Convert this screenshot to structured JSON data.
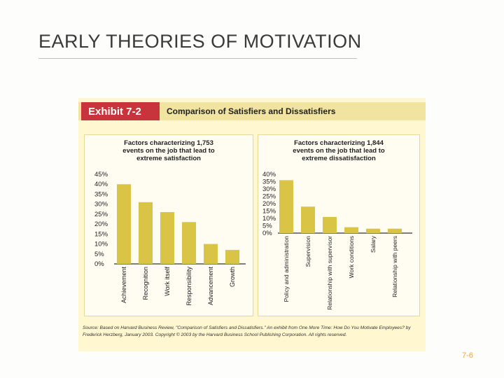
{
  "slide": {
    "title": "EARLY THEORIES OF MOTIVATION",
    "page_number": "7-6"
  },
  "exhibit": {
    "tag": "Exhibit 7-2",
    "heading": "Comparison of Satisfiers and Dissatisfiers",
    "source": "Source: Based on Harvard Business Review, \"Comparison of Satisfiers and Dissatisfiers.\" An exhibit from One More Time: How Do You Motivate Employees? by Frederick Herzberg, January 2003. Copyright © 2003 by the Harvard Business School Publishing Corporation. All rights reserved.",
    "colors": {
      "tag_bg": "#c8343b",
      "bar": "#d9c445",
      "background": "#fff7cf"
    }
  },
  "chart_data": [
    {
      "type": "bar",
      "title": "Factors characterizing 1,753 events on the job that lead to extreme satisfaction",
      "categories": [
        "Achievement",
        "Recognition",
        "Work itself",
        "Responsibility",
        "Advancement",
        "Growth"
      ],
      "values": [
        40,
        31,
        26,
        21,
        10,
        7
      ],
      "ylim": [
        0,
        45
      ],
      "yticks": [
        "0%",
        "5%",
        "10%",
        "15%",
        "20%",
        "25%",
        "30%",
        "35%",
        "40%",
        "45%"
      ]
    },
    {
      "type": "bar",
      "title": "Factors characterizing 1,844 events on the job that lead to extreme dissatisfaction",
      "categories": [
        "Policy and administration",
        "Supervision",
        "Relationship with supervisor",
        "Work conditions",
        "Salary",
        "Relationship with peers"
      ],
      "values": [
        36,
        18,
        11,
        4,
        3,
        3
      ],
      "ylim": [
        0,
        40
      ],
      "yticks": [
        "0%",
        "5%",
        "10%",
        "15%",
        "20%",
        "25%",
        "30%",
        "35%",
        "40%"
      ]
    }
  ]
}
